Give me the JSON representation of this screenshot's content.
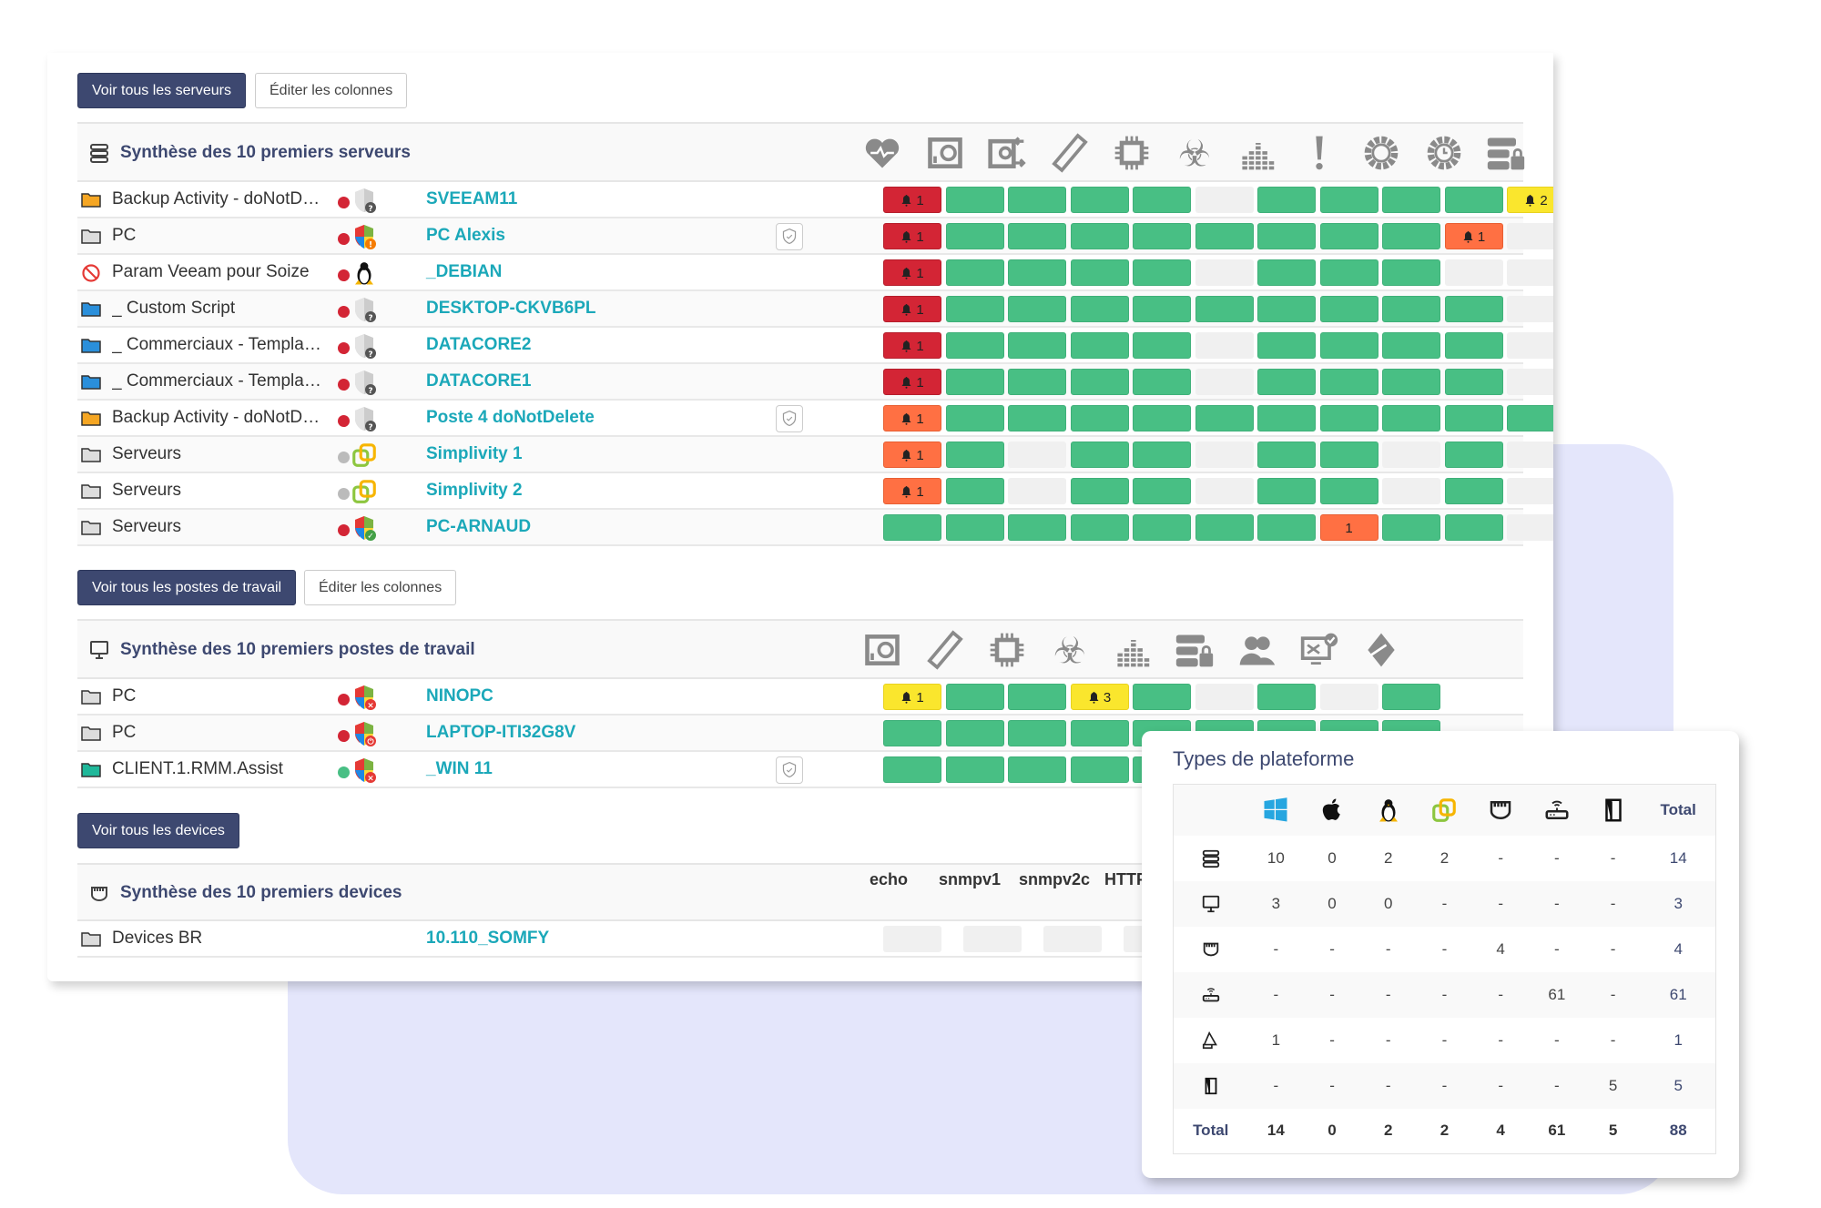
{
  "colors": {
    "primary": "#3d4870",
    "link": "#1ba8b9",
    "ok": "#48bf84",
    "critical": "#d32535",
    "major": "#ff7043",
    "warning": "#fae62d",
    "none": "#f0f0f0"
  },
  "servers": {
    "view_all_label": "Voir tous les serveurs",
    "edit_columns_label": "Éditer les colonnes",
    "title": "Synthèse des 10 premiers serveurs",
    "columns": [
      "heart-icon",
      "hard-disk-icon",
      "disk-sync-icon",
      "ram-icon",
      "cpu-icon",
      "biohazard-icon",
      "bars-icon",
      "exclamation-icon",
      "gear-icon",
      "gear-clock-icon",
      "server-lock-icon"
    ],
    "rows": [
      {
        "group": "Backup Activity - doNotD…",
        "folder": "#f5a623",
        "dot": "red",
        "os": "shield-unknown",
        "name": "SVEEAM11",
        "shield": false,
        "cells": [
          {
            "s": "critical",
            "n": 1
          },
          "ok",
          "ok",
          "ok",
          "ok",
          "none",
          "ok",
          "ok",
          "ok",
          "ok",
          {
            "s": "warning",
            "n": 2
          }
        ]
      },
      {
        "group": "PC",
        "folder": "#ddd",
        "dot": "red",
        "os": "windows-warning",
        "name": "PC Alexis",
        "shield": true,
        "cells": [
          {
            "s": "critical",
            "n": 1
          },
          "ok",
          "ok",
          "ok",
          "ok",
          "ok",
          "ok",
          "ok",
          "ok",
          {
            "s": "major",
            "n": 1
          },
          "none"
        ]
      },
      {
        "group": "Param Veeam pour Soize",
        "folder": "blocked",
        "dot": "red",
        "os": "linux",
        "name": "_DEBIAN",
        "shield": false,
        "cells": [
          {
            "s": "critical",
            "n": 1
          },
          "ok",
          "ok",
          "ok",
          "ok",
          "none",
          "ok",
          "ok",
          "ok",
          "none",
          "none"
        ]
      },
      {
        "group": "_ Custom Script",
        "folder": "#2a8fdb",
        "dot": "red",
        "os": "shield-unknown",
        "name": "DESKTOP-CKVB6PL",
        "shield": false,
        "cells": [
          {
            "s": "critical",
            "n": 1
          },
          "ok",
          "ok",
          "ok",
          "ok",
          "ok",
          "ok",
          "ok",
          "ok",
          "ok",
          "none"
        ]
      },
      {
        "group": "_ Commerciaux - Templa…",
        "folder": "#2a8fdb",
        "dot": "red",
        "os": "shield-unknown",
        "name": "DATACORE2",
        "shield": false,
        "cells": [
          {
            "s": "critical",
            "n": 1
          },
          "ok",
          "ok",
          "ok",
          "ok",
          "none",
          "ok",
          "ok",
          "ok",
          "ok",
          "none"
        ]
      },
      {
        "group": "_ Commerciaux - Templa…",
        "folder": "#2a8fdb",
        "dot": "red",
        "os": "shield-unknown",
        "name": "DATACORE1",
        "shield": false,
        "cells": [
          {
            "s": "critical",
            "n": 1
          },
          "ok",
          "ok",
          "ok",
          "ok",
          "none",
          "ok",
          "ok",
          "ok",
          "ok",
          "none"
        ]
      },
      {
        "group": "Backup Activity - doNotD…",
        "folder": "#f5a623",
        "dot": "red",
        "os": "shield-unknown",
        "name": "Poste 4 doNotDelete",
        "shield": true,
        "cells": [
          {
            "s": "major",
            "n": 1
          },
          "ok",
          "ok",
          "ok",
          "ok",
          "ok",
          "ok",
          "ok",
          "ok",
          "ok",
          "ok"
        ]
      },
      {
        "group": "Serveurs",
        "folder": "#ddd",
        "dot": "gray",
        "os": "vmware",
        "name": "Simplivity 1",
        "shield": false,
        "cells": [
          {
            "s": "major",
            "n": 1
          },
          "ok",
          "none",
          "ok",
          "ok",
          "none",
          "ok",
          "ok",
          "none",
          "ok",
          "none"
        ]
      },
      {
        "group": "Serveurs",
        "folder": "#ddd",
        "dot": "gray",
        "os": "vmware",
        "name": "Simplivity 2",
        "shield": false,
        "cells": [
          {
            "s": "major",
            "n": 1
          },
          "ok",
          "none",
          "ok",
          "ok",
          "none",
          "ok",
          "ok",
          "none",
          "ok",
          "none"
        ]
      },
      {
        "group": "Serveurs",
        "folder": "#ddd",
        "dot": "red",
        "os": "windows-ok",
        "name": "PC-ARNAUD",
        "shield": false,
        "cells": [
          "ok",
          "ok",
          "ok",
          "ok",
          "ok",
          "ok",
          "ok",
          {
            "s": "major",
            "n": 1,
            "nobell": true
          },
          "ok",
          "ok",
          "none"
        ]
      }
    ]
  },
  "workstations": {
    "view_all_label": "Voir tous les postes de travail",
    "edit_columns_label": "Éditer les colonnes",
    "title": "Synthèse des 10 premiers postes de travail",
    "columns": [
      "hard-disk-icon",
      "ram-icon",
      "cpu-icon",
      "biohazard-icon",
      "bars-icon",
      "server-lock-icon",
      "users-icon",
      "monitor-check-icon",
      "tag-icon"
    ],
    "rows": [
      {
        "group": "PC",
        "folder": "#ddd",
        "dot": "red",
        "os": "windows-error",
        "name": "NINOPC",
        "shield": false,
        "cells": [
          {
            "s": "warning",
            "n": 1
          },
          "ok",
          "ok",
          {
            "s": "warning",
            "n": 3
          },
          "ok",
          "none",
          "ok",
          "none",
          "ok"
        ]
      },
      {
        "group": "PC",
        "folder": "#ddd",
        "dot": "red",
        "os": "windows-power",
        "name": "LAPTOP-ITI32G8V",
        "shield": false,
        "cells": [
          "ok",
          "ok",
          "ok",
          "ok",
          "ok",
          "ok",
          "ok",
          "ok",
          "ok"
        ]
      },
      {
        "group": "CLIENT.1.RMM.Assist",
        "folder": "#1fb89a",
        "dot": "green",
        "os": "windows-error",
        "name": "_WIN 11",
        "shield": true,
        "cells": [
          "ok",
          "ok",
          "ok",
          "ok",
          "ok",
          "ok",
          "ok",
          "ok",
          "ok"
        ]
      }
    ]
  },
  "devices": {
    "view_all_label": "Voir tous les devices",
    "title": "Synthèse des 10 premiers devices",
    "columns": [
      "echo",
      "snmpv1",
      "snmpv2c",
      "HTTP"
    ],
    "rows": [
      {
        "group": "Devices BR",
        "folder": "#ddd",
        "name": "10.110_SOMFY",
        "cells": [
          "none",
          "none",
          "none",
          "none"
        ]
      }
    ]
  },
  "platforms": {
    "title": "Types de plateforme",
    "columns": [
      "windows-icon",
      "apple-icon",
      "linux-icon",
      "vmware-icon",
      "switch-icon",
      "router-icon",
      "storage-icon"
    ],
    "total_label": "Total",
    "rows": [
      {
        "icon": "server-icon",
        "values": [
          "10",
          "0",
          "2",
          "2",
          "-",
          "-",
          "-"
        ],
        "total": "14"
      },
      {
        "icon": "workstation-icon",
        "values": [
          "3",
          "0",
          "0",
          "-",
          "-",
          "-",
          "-"
        ],
        "total": "3"
      },
      {
        "icon": "switch-icon",
        "values": [
          "-",
          "-",
          "-",
          "-",
          "4",
          "-",
          "-"
        ],
        "total": "4"
      },
      {
        "icon": "router-icon",
        "values": [
          "-",
          "-",
          "-",
          "-",
          "-",
          "61",
          "-"
        ],
        "total": "61"
      },
      {
        "icon": "printer-icon",
        "values": [
          "1",
          "-",
          "-",
          "-",
          "-",
          "-",
          "-"
        ],
        "total": "1"
      },
      {
        "icon": "storage-icon",
        "values": [
          "-",
          "-",
          "-",
          "-",
          "-",
          "-",
          "5"
        ],
        "total": "5"
      }
    ],
    "totals": [
      "14",
      "0",
      "2",
      "2",
      "4",
      "61",
      "5"
    ],
    "grand_total": "88"
  }
}
